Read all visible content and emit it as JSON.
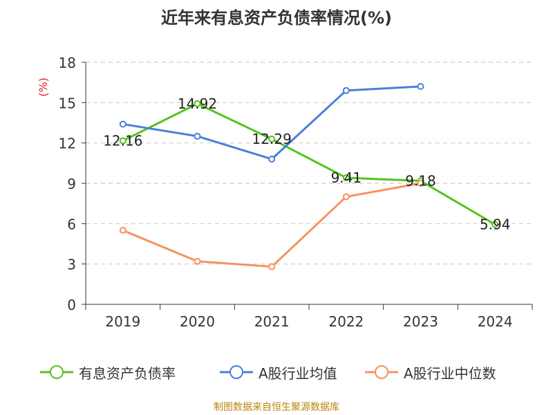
{
  "title": "近年来有息资产负债率情况(%)",
  "source": "制图数据来自恒生聚源数据库",
  "chart_data": {
    "type": "line",
    "title": "近年来有息资产负债率情况(%)",
    "ylabel": "(%)",
    "xlabel": "",
    "categories": [
      "2019",
      "2020",
      "2021",
      "2022",
      "2023",
      "2024"
    ],
    "ylim": [
      0,
      18
    ],
    "yticks": [
      "0",
      "3",
      "6",
      "9",
      "12",
      "15",
      "18"
    ],
    "grid": true,
    "legend_position": "bottom",
    "series": [
      {
        "name": "有息资产负债率",
        "color": "#52c41a",
        "values": [
          12.16,
          14.92,
          12.29,
          9.41,
          9.18,
          5.94
        ],
        "labels": [
          "12.16",
          "14.92",
          "12.29",
          "9.41",
          "9.18",
          "5.94"
        ]
      },
      {
        "name": "A股行业均值",
        "color": "#4a7fd8",
        "values": [
          13.4,
          12.5,
          10.8,
          15.9,
          16.2,
          null
        ]
      },
      {
        "name": "A股行业中位数",
        "color": "#f4935f",
        "values": [
          5.5,
          3.2,
          2.8,
          8.0,
          9.0,
          null
        ]
      }
    ]
  }
}
